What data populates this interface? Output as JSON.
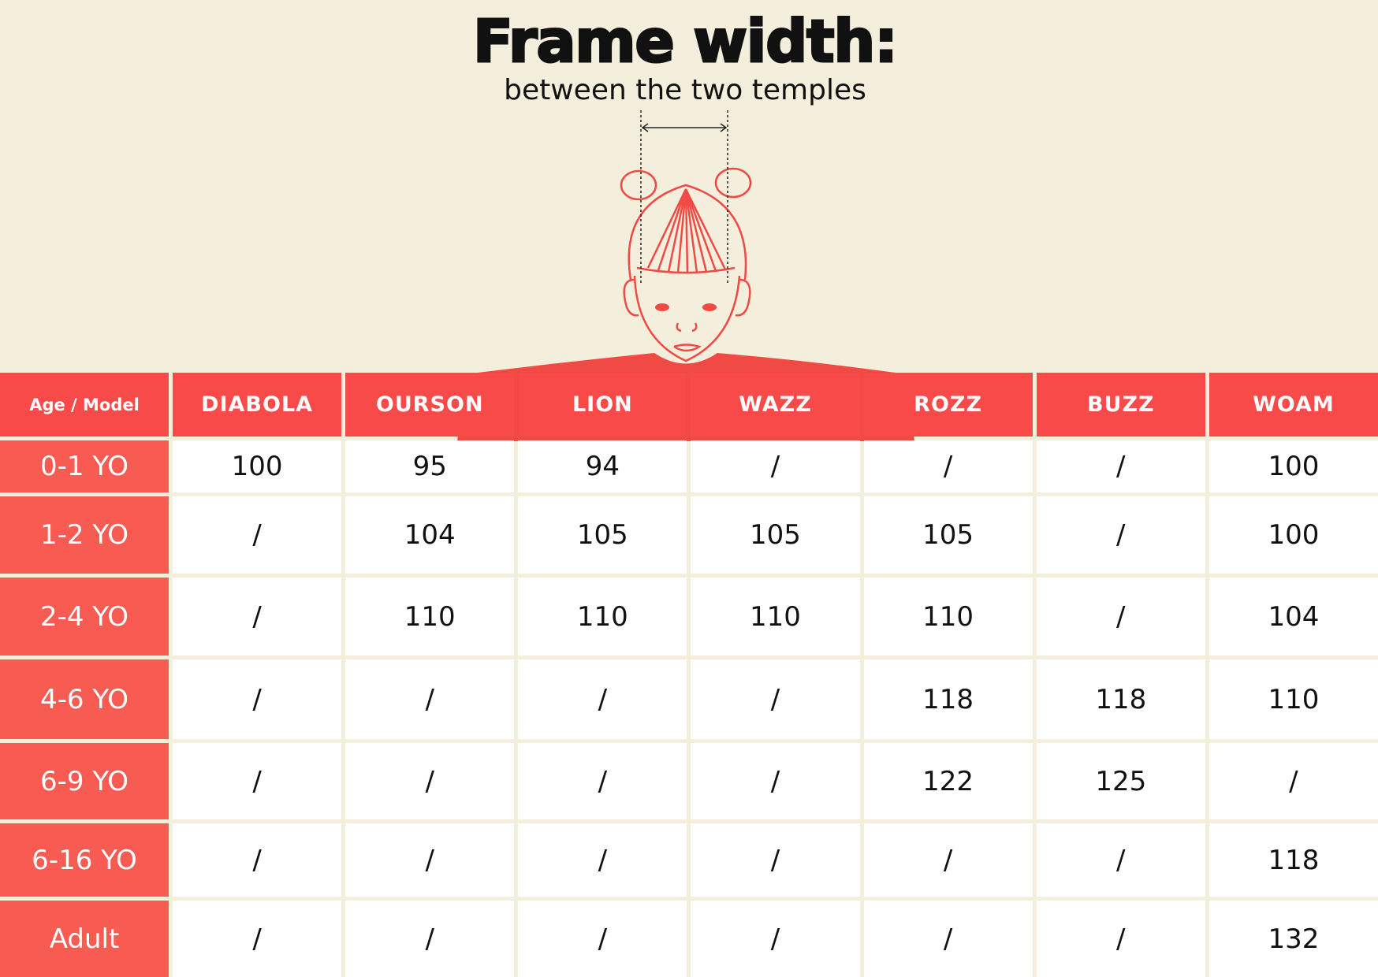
{
  "title": "Frame width:",
  "subtitle": "between the two temples",
  "colors": {
    "background": "#f3efdc",
    "header": "#f94a4a",
    "age_column": "#f75b52",
    "illustration": "#f14a44"
  },
  "table": {
    "corner": "Age / Model",
    "models": [
      "DIABOLA",
      "OURSON",
      "LION",
      "WAZZ",
      "ROZZ",
      "BUZZ",
      "WOAM"
    ],
    "rows": [
      {
        "age": "0-1 YO",
        "values": [
          "100",
          "95",
          "94",
          "/",
          "/",
          "/",
          "100"
        ]
      },
      {
        "age": "1-2 YO",
        "values": [
          "/",
          "104",
          "105",
          "105",
          "105",
          "/",
          "100"
        ]
      },
      {
        "age": "2-4 YO",
        "values": [
          "/",
          "110",
          "110",
          "110",
          "110",
          "/",
          "104"
        ]
      },
      {
        "age": "4-6 YO",
        "values": [
          "/",
          "/",
          "/",
          "/",
          "118",
          "118",
          "110"
        ]
      },
      {
        "age": "6-9 YO",
        "values": [
          "/",
          "/",
          "/",
          "/",
          "122",
          "125",
          "/"
        ]
      },
      {
        "age": "6-16 YO",
        "values": [
          "/",
          "/",
          "/",
          "/",
          "/",
          "/",
          "118"
        ]
      },
      {
        "age": "Adult",
        "values": [
          "/",
          "/",
          "/",
          "/",
          "/",
          "/",
          "132"
        ]
      }
    ]
  }
}
